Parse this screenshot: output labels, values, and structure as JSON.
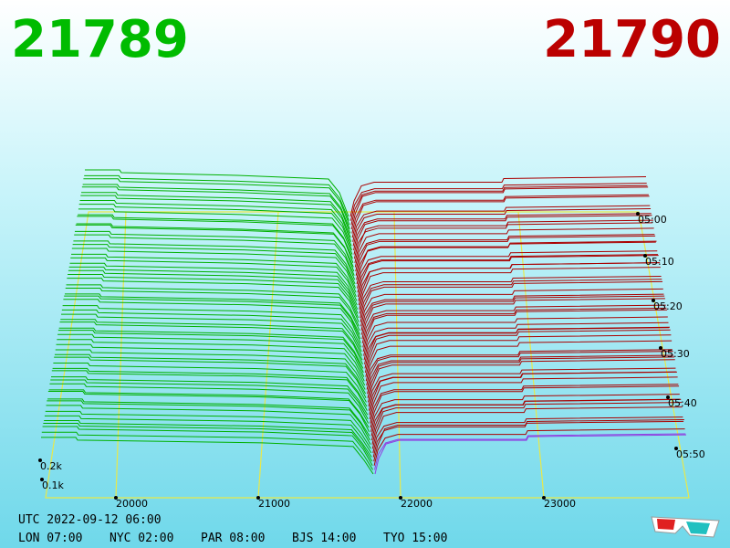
{
  "header": {
    "bid": "21789",
    "ask": "21790"
  },
  "price_axis": [
    "20000",
    "21000",
    "22000",
    "23000"
  ],
  "time_axis": [
    "05:00",
    "05:10",
    "05:20",
    "05:30",
    "05:40",
    "05:50"
  ],
  "volume_axis": [
    "0.2k",
    "0.1k"
  ],
  "footer": {
    "utc": "UTC 2022-09-12 06:00",
    "clocks": [
      "LON 07:00",
      "NYC 02:00",
      "PAR 08:00",
      "BJS 14:00",
      "TYO 15:00"
    ]
  }
}
